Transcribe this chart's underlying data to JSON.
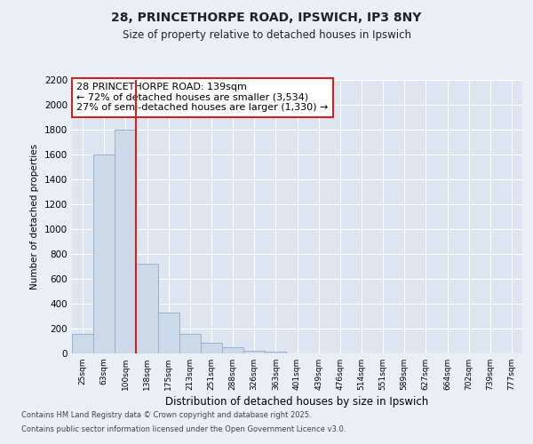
{
  "title1": "28, PRINCETHORPE ROAD, IPSWICH, IP3 8NY",
  "title2": "Size of property relative to detached houses in Ipswich",
  "xlabel": "Distribution of detached houses by size in Ipswich",
  "ylabel": "Number of detached properties",
  "categories": [
    "25sqm",
    "63sqm",
    "100sqm",
    "138sqm",
    "175sqm",
    "213sqm",
    "251sqm",
    "288sqm",
    "326sqm",
    "363sqm",
    "401sqm",
    "439sqm",
    "476sqm",
    "514sqm",
    "551sqm",
    "589sqm",
    "627sqm",
    "664sqm",
    "702sqm",
    "739sqm",
    "777sqm"
  ],
  "values": [
    155,
    1600,
    1800,
    720,
    325,
    155,
    85,
    45,
    20,
    10,
    0,
    0,
    0,
    0,
    0,
    0,
    0,
    0,
    0,
    0,
    0
  ],
  "bar_color": "#ccd9e8",
  "bar_edge_color": "#9ab0cc",
  "red_line_index": 3,
  "highlight_line_color": "#cc2222",
  "annotation_text": "28 PRINCETHORPE ROAD: 139sqm\n← 72% of detached houses are smaller (3,534)\n27% of semi-detached houses are larger (1,330) →",
  "annotation_box_color": "#ffffff",
  "annotation_box_edge_color": "#cc2222",
  "ylim": [
    0,
    2200
  ],
  "yticks": [
    0,
    200,
    400,
    600,
    800,
    1000,
    1200,
    1400,
    1600,
    1800,
    2000,
    2200
  ],
  "footnote1": "Contains HM Land Registry data © Crown copyright and database right 2025.",
  "footnote2": "Contains public sector information licensed under the Open Government Licence v3.0.",
  "bg_color": "#eaeff5",
  "plot_bg_color": "#dde5f0",
  "grid_color": "#ffffff"
}
